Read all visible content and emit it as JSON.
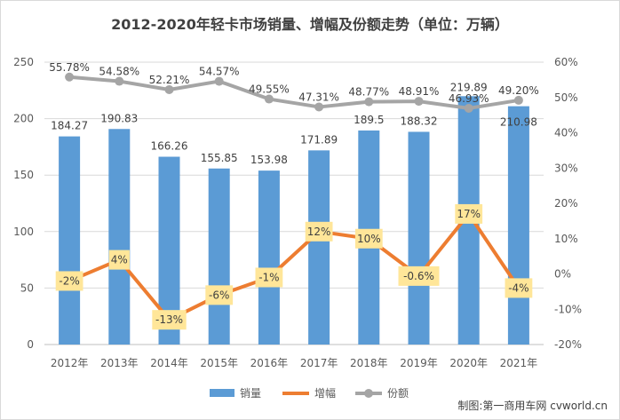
{
  "chart_data": {
    "type": "bar",
    "title": "2012-2020年轻卡市场销量、增幅及份额走势（单位：万辆）",
    "categories": [
      "2012年",
      "2013年",
      "2014年",
      "2015年",
      "2016年",
      "2017年",
      "2018年",
      "2019年",
      "2020年",
      "2021年"
    ],
    "series": [
      {
        "name": "销量",
        "type": "bar",
        "axis": "left",
        "color": "#5b9bd5",
        "values": [
          184.27,
          190.83,
          166.26,
          155.85,
          153.98,
          171.89,
          189.5,
          188.32,
          219.89,
          210.98
        ],
        "labels": [
          "184.27",
          "190.83",
          "166.26",
          "155.85",
          "153.98",
          "171.89",
          "189.5",
          "188.32",
          "219.89",
          "210.98"
        ]
      },
      {
        "name": "增幅",
        "type": "line",
        "axis": "right",
        "color": "#ed7d31",
        "values": [
          -2,
          4,
          -13,
          -6,
          -1,
          12,
          10,
          -0.6,
          17,
          -4
        ],
        "labels": [
          "-2%",
          "4%",
          "-13%",
          "-6%",
          "-1%",
          "12%",
          "10%",
          "-0.6%",
          "17%",
          "-4%"
        ]
      },
      {
        "name": "份额",
        "type": "line",
        "axis": "right",
        "color": "#a5a5a5",
        "values": [
          55.78,
          54.58,
          52.21,
          54.57,
          49.55,
          47.31,
          48.77,
          48.91,
          46.93,
          49.2
        ],
        "labels": [
          "55.78%",
          "54.58%",
          "52.21%",
          "54.57%",
          "49.55%",
          "47.31%",
          "48.77%",
          "48.91%",
          "46.93%",
          "49.20%"
        ]
      }
    ],
    "ylim_left": [
      0,
      250
    ],
    "yticks_left": [
      "0",
      "50",
      "100",
      "150",
      "200",
      "250"
    ],
    "ylim_right": [
      -20,
      60
    ],
    "yticks_right": [
      "-20%",
      "-10%",
      "0%",
      "10%",
      "20%",
      "30%",
      "40%",
      "50%",
      "60%"
    ],
    "grid": true,
    "legend_position": "bottom"
  },
  "credit": "制图:第一商用车网 cvworld.cn"
}
